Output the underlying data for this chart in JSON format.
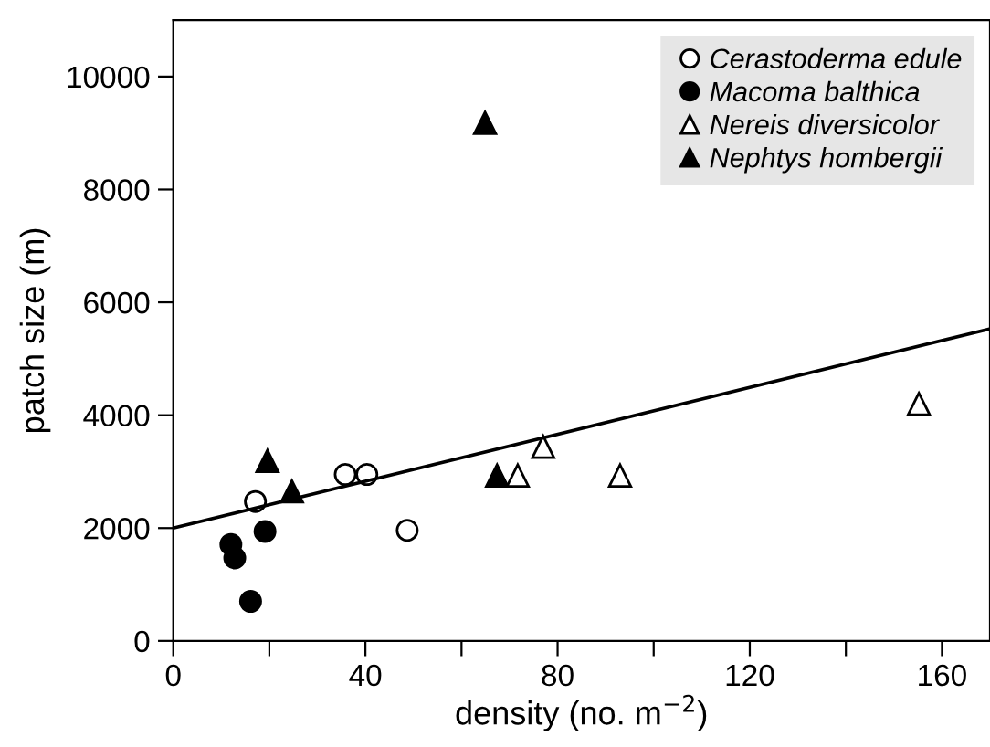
{
  "chart_data": {
    "type": "scatter",
    "xlabel": "density (no. m$^{−2}$)",
    "ylabel": "patch size (m)",
    "xlim": [
      0,
      170
    ],
    "ylim": [
      0,
      11000
    ],
    "xticks": [
      0,
      {
        "value": 20,
        "label": null
      },
      40,
      {
        "value": 60,
        "label": null
      },
      80,
      {
        "value": 100,
        "label": null
      },
      120,
      {
        "value": 140,
        "label": null
      },
      160
    ],
    "yticks": [
      0,
      2000,
      4000,
      6000,
      8000,
      10000
    ],
    "grid": false,
    "legend": "top right",
    "series": [
      {
        "name": "Cerastoderma edule",
        "color": "#ffffff",
        "marker": "circle",
        "x": [
          17.1,
          35.8,
          40.3,
          48.7
        ],
        "values": [
          2470,
          2950,
          2950,
          1960
        ]
      },
      {
        "name": "Macoma balthica",
        "color": "#000000",
        "marker": "circle",
        "x": [
          12.0,
          12.8,
          16.1,
          19.1
        ],
        "values": [
          1710,
          1470,
          700,
          1940
        ]
      },
      {
        "name": "Nereis diversicolor",
        "color": "#ffffff",
        "marker": "triangle",
        "x": [
          71.7,
          77.0,
          93.0,
          155.2
        ],
        "values": [
          2930,
          3440,
          2930,
          4200
        ]
      },
      {
        "name": "Nephtys hombergii",
        "color": "#000000",
        "marker": "triangle",
        "x": [
          19.6,
          24.7,
          67.4,
          64.9
        ],
        "values": [
          3190,
          2650,
          2930,
          9180
        ]
      },
      {
        "type": "line",
        "color": "#000000",
        "marker": "none",
        "x": [
          0,
          170
        ],
        "values": [
          2000,
          5530
        ]
      }
    ]
  }
}
